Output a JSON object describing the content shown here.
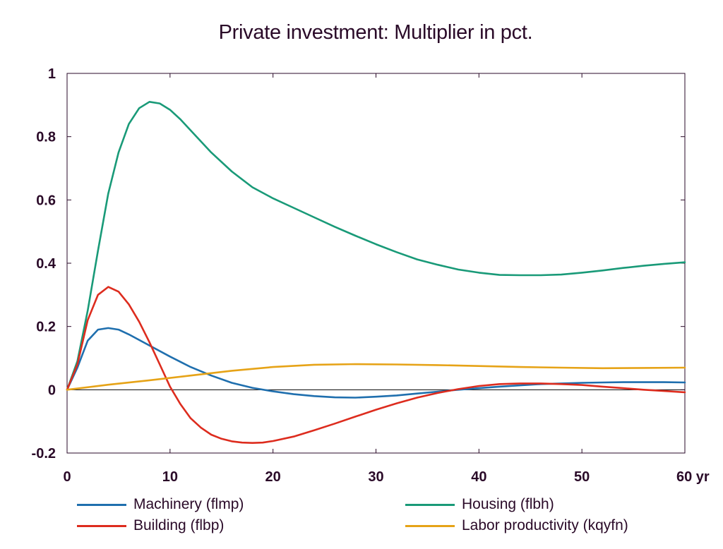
{
  "chart_data": {
    "type": "line",
    "title": "Private investment: Multiplier in pct.",
    "xlabel": "",
    "ylabel": "",
    "xlim": [
      0,
      60
    ],
    "ylim": [
      -0.2,
      1
    ],
    "x_ticks": [
      0,
      10,
      20,
      30,
      40,
      50,
      60
    ],
    "x_tick_labels": [
      "0",
      "10",
      "20",
      "30",
      "40",
      "50",
      "60 yr"
    ],
    "y_ticks": [
      -0.2,
      0,
      0.2,
      0.4,
      0.6,
      0.8,
      1
    ],
    "y_tick_labels": [
      "-0.2",
      "0",
      "0.2",
      "0.4",
      "0.6",
      "0.8",
      "1"
    ],
    "grid": false,
    "zero_line": true,
    "legend_position": "bottom",
    "series": [
      {
        "name": "Machinery (flmp)",
        "color": "#1f6fae",
        "points": [
          [
            0,
            0
          ],
          [
            1,
            0.07
          ],
          [
            2,
            0.155
          ],
          [
            3,
            0.19
          ],
          [
            4,
            0.195
          ],
          [
            5,
            0.19
          ],
          [
            6,
            0.175
          ],
          [
            8,
            0.14
          ],
          [
            10,
            0.105
          ],
          [
            12,
            0.072
          ],
          [
            14,
            0.045
          ],
          [
            16,
            0.022
          ],
          [
            18,
            0.006
          ],
          [
            20,
            -0.005
          ],
          [
            22,
            -0.014
          ],
          [
            24,
            -0.02
          ],
          [
            26,
            -0.024
          ],
          [
            28,
            -0.025
          ],
          [
            30,
            -0.022
          ],
          [
            32,
            -0.018
          ],
          [
            34,
            -0.012
          ],
          [
            36,
            -0.006
          ],
          [
            38,
            0.0
          ],
          [
            40,
            0.005
          ],
          [
            42,
            0.01
          ],
          [
            44,
            0.014
          ],
          [
            46,
            0.018
          ],
          [
            48,
            0.02
          ],
          [
            50,
            0.022
          ],
          [
            52,
            0.023
          ],
          [
            54,
            0.024
          ],
          [
            56,
            0.024
          ],
          [
            58,
            0.024
          ],
          [
            60,
            0.023
          ]
        ]
      },
      {
        "name": "Housing (flbh)",
        "color": "#199a78",
        "points": [
          [
            0,
            0
          ],
          [
            1,
            0.09
          ],
          [
            2,
            0.25
          ],
          [
            3,
            0.44
          ],
          [
            4,
            0.62
          ],
          [
            5,
            0.75
          ],
          [
            6,
            0.84
          ],
          [
            7,
            0.89
          ],
          [
            8,
            0.91
          ],
          [
            9,
            0.905
          ],
          [
            10,
            0.885
          ],
          [
            11,
            0.855
          ],
          [
            12,
            0.82
          ],
          [
            14,
            0.75
          ],
          [
            16,
            0.69
          ],
          [
            18,
            0.64
          ],
          [
            20,
            0.605
          ],
          [
            22,
            0.575
          ],
          [
            24,
            0.545
          ],
          [
            26,
            0.515
          ],
          [
            28,
            0.487
          ],
          [
            30,
            0.46
          ],
          [
            32,
            0.435
          ],
          [
            34,
            0.412
          ],
          [
            36,
            0.395
          ],
          [
            38,
            0.38
          ],
          [
            40,
            0.37
          ],
          [
            42,
            0.363
          ],
          [
            44,
            0.362
          ],
          [
            46,
            0.362
          ],
          [
            48,
            0.364
          ],
          [
            50,
            0.37
          ],
          [
            52,
            0.377
          ],
          [
            54,
            0.385
          ],
          [
            56,
            0.392
          ],
          [
            58,
            0.398
          ],
          [
            60,
            0.403
          ]
        ]
      },
      {
        "name": "Building (flbp)",
        "color": "#dd2c1e",
        "points": [
          [
            0,
            0
          ],
          [
            1,
            0.08
          ],
          [
            2,
            0.22
          ],
          [
            3,
            0.3
          ],
          [
            4,
            0.325
          ],
          [
            5,
            0.31
          ],
          [
            6,
            0.27
          ],
          [
            7,
            0.215
          ],
          [
            8,
            0.15
          ],
          [
            9,
            0.08
          ],
          [
            10,
            0.01
          ],
          [
            11,
            -0.045
          ],
          [
            12,
            -0.09
          ],
          [
            13,
            -0.12
          ],
          [
            14,
            -0.142
          ],
          [
            15,
            -0.155
          ],
          [
            16,
            -0.163
          ],
          [
            17,
            -0.167
          ],
          [
            18,
            -0.168
          ],
          [
            19,
            -0.167
          ],
          [
            20,
            -0.162
          ],
          [
            22,
            -0.148
          ],
          [
            24,
            -0.128
          ],
          [
            26,
            -0.107
          ],
          [
            28,
            -0.085
          ],
          [
            30,
            -0.063
          ],
          [
            32,
            -0.043
          ],
          [
            34,
            -0.025
          ],
          [
            36,
            -0.01
          ],
          [
            38,
            0.002
          ],
          [
            40,
            0.012
          ],
          [
            42,
            0.018
          ],
          [
            44,
            0.02
          ],
          [
            46,
            0.02
          ],
          [
            48,
            0.018
          ],
          [
            50,
            0.015
          ],
          [
            52,
            0.01
          ],
          [
            54,
            0.005
          ],
          [
            56,
            0.0
          ],
          [
            58,
            -0.004
          ],
          [
            60,
            -0.008
          ]
        ]
      },
      {
        "name": "Labor productivity (kqyfn)",
        "color": "#e6a317",
        "points": [
          [
            0,
            0
          ],
          [
            4,
            0.016
          ],
          [
            8,
            0.03
          ],
          [
            12,
            0.045
          ],
          [
            16,
            0.06
          ],
          [
            20,
            0.072
          ],
          [
            24,
            0.079
          ],
          [
            28,
            0.081
          ],
          [
            32,
            0.08
          ],
          [
            36,
            0.078
          ],
          [
            40,
            0.075
          ],
          [
            44,
            0.072
          ],
          [
            48,
            0.07
          ],
          [
            52,
            0.068
          ],
          [
            56,
            0.069
          ],
          [
            60,
            0.07
          ]
        ]
      }
    ]
  },
  "legend": [
    {
      "name": "Machinery (flmp)",
      "color": "#1f6fae"
    },
    {
      "name": "Housing (flbh)",
      "color": "#199a78"
    },
    {
      "name": "Building (flbp)",
      "color": "#dd2c1e"
    },
    {
      "name": "Labor productivity (kqyfn)",
      "color": "#e6a317"
    }
  ]
}
